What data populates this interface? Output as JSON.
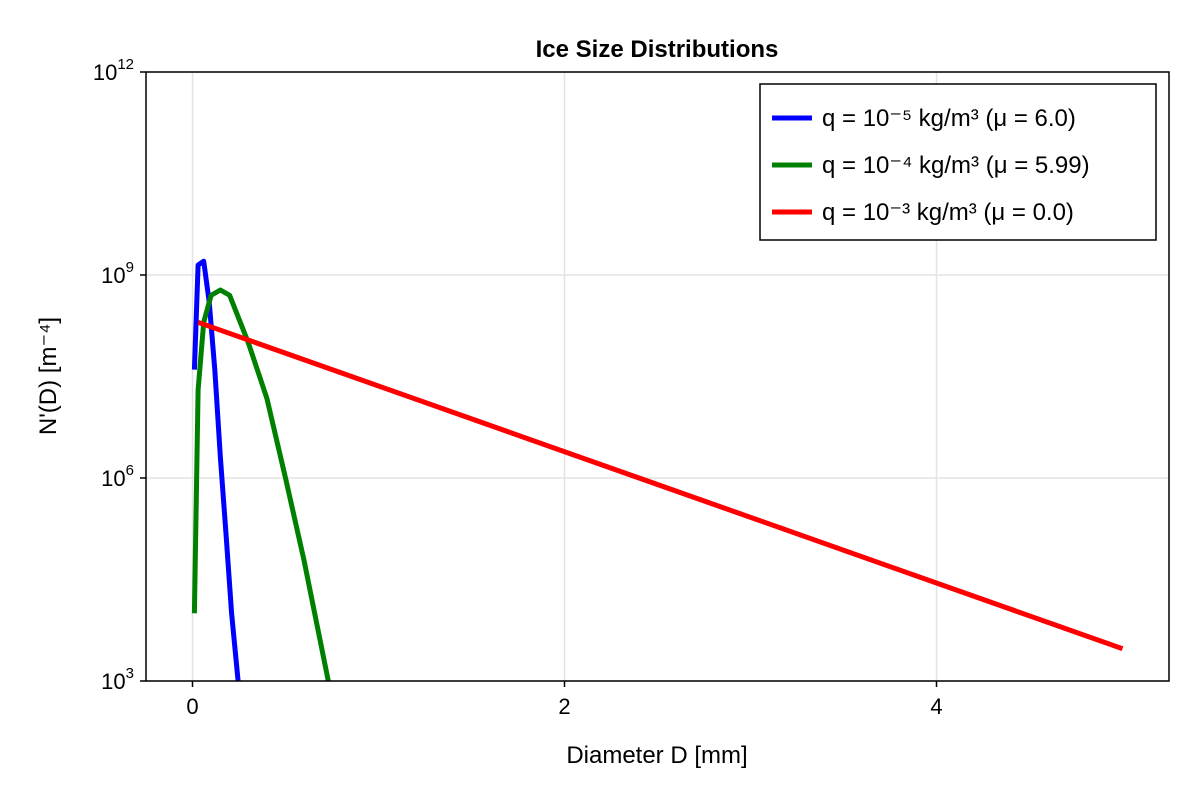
{
  "chart_data": {
    "type": "line",
    "title": "Ice Size Distributions",
    "xlabel": "Diameter D [mm]",
    "ylabel": "N'(D) [m⁻⁴]",
    "xlim": [
      -0.25,
      5.25
    ],
    "ylim": [
      1000,
      1000000000000
    ],
    "yscale": "log",
    "xticks": [
      0,
      2,
      4
    ],
    "xtick_labels": [
      "0",
      "2",
      "4"
    ],
    "yticks": [
      1000,
      1000000,
      1000000000,
      1000000000000
    ],
    "ytick_base": "10",
    "ytick_exponents": [
      "3",
      "6",
      "9",
      "12"
    ],
    "grid": true,
    "legend_position": "top-right",
    "series": [
      {
        "name": "q = 10⁻⁵ kg/m³  (μ = 6.0)",
        "color": "#0000ff",
        "x": [
          0.01,
          0.03,
          0.06,
          0.09,
          0.12,
          0.15,
          0.18,
          0.21,
          0.245
        ],
        "y": [
          40000000,
          1400000000,
          1600000000,
          400000000,
          40000000,
          2000000,
          150000,
          10000,
          1000
        ]
      },
      {
        "name": "q = 10⁻⁴ kg/m³  (μ = 5.99)",
        "color": "#008000",
        "x": [
          0.01,
          0.03,
          0.06,
          0.1,
          0.15,
          0.2,
          0.3,
          0.4,
          0.5,
          0.6,
          0.73
        ],
        "y": [
          10000,
          20000000,
          200000000,
          500000000,
          600000000,
          500000000,
          100000000,
          15000000,
          1000000,
          60000,
          1000
        ]
      },
      {
        "name": "q = 10⁻³ kg/m³  (μ = 0.0)",
        "color": "#ff0000",
        "x": [
          0.03,
          5.0
        ],
        "y": [
          200000000,
          3000
        ]
      }
    ]
  }
}
